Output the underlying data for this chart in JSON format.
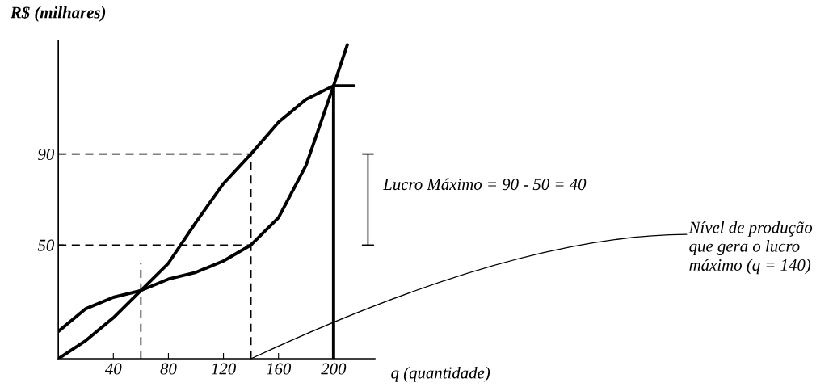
{
  "chart_data": {
    "type": "line",
    "ylabel": "R$ (milhares)",
    "xlabel": "q (quantidade)",
    "xlim": [
      0,
      230
    ],
    "ylim": [
      0,
      140
    ],
    "xticks": [
      40,
      80,
      120,
      160,
      200
    ],
    "yticks": [
      50,
      90
    ],
    "grid": false,
    "legend": false,
    "series": [
      {
        "color": "#000000",
        "x": [
          0,
          20,
          40,
          60,
          80,
          100,
          120,
          140,
          160,
          180,
          200,
          215
        ],
        "values": [
          12,
          22,
          27,
          30,
          42,
          60,
          77,
          90,
          104,
          114,
          120,
          120
        ]
      },
      {
        "color": "#000000",
        "x": [
          0,
          20,
          40,
          60,
          80,
          100,
          120,
          140,
          160,
          180,
          200,
          210
        ],
        "values": [
          0,
          8,
          18,
          30,
          35,
          38,
          43,
          50,
          62,
          85,
          120,
          138
        ]
      },
      {
        "color": "#000000",
        "line_style": "dashed",
        "x": [
          0,
          140
        ],
        "values": [
          90,
          90
        ]
      },
      {
        "color": "#000000",
        "line_style": "dashed",
        "x": [
          0,
          140
        ],
        "values": [
          50,
          50
        ]
      },
      {
        "color": "#000000",
        "line_style": "dashed",
        "x": [
          140,
          140
        ],
        "values": [
          0,
          90
        ]
      },
      {
        "color": "#000000",
        "line_style": "dashed",
        "x": [
          60,
          60
        ],
        "values": [
          0,
          42
        ]
      },
      {
        "color": "#000000",
        "x": [
          200,
          200
        ],
        "values": [
          0,
          120
        ]
      },
      {
        "color": "#000000",
        "line_style": "solid",
        "x": [
          221,
          229,
          225,
          225,
          221,
          229
        ],
        "values": [
          90,
          90,
          90,
          50,
          50,
          50
        ]
      }
    ],
    "annotations": [
      "Lucro Máximo = 90 - 50 = 40",
      {
        "text": "Nível de produção\nque gera o lucro\nmáximo (q = 140)",
        "x": 140,
        "y": 0
      }
    ]
  }
}
